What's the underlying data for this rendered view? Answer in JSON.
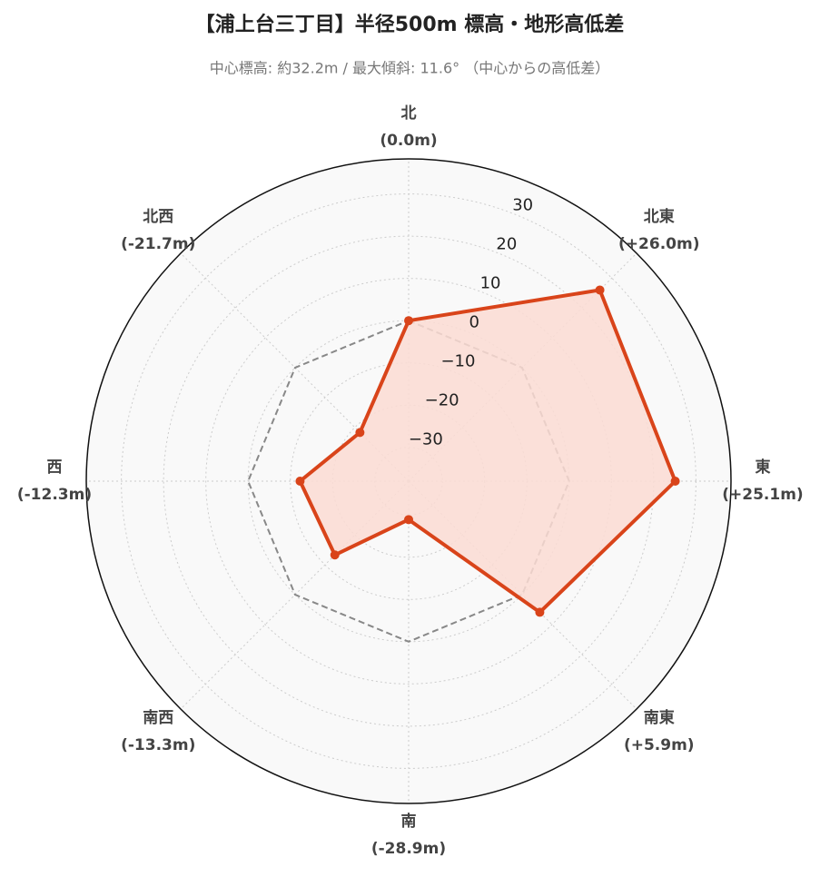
{
  "chart_data": {
    "type": "radar",
    "title": "【浦上台三丁目】半径500m 標高・地形高低差",
    "subtitle": "中心標高: 約32.2m / 最大傾斜: 11.6° （中心からの高低差）",
    "categories": [
      "北",
      "北東",
      "東",
      "南東",
      "南",
      "南西",
      "西",
      "北西"
    ],
    "values": [
      0.0,
      26.0,
      25.1,
      5.9,
      -28.9,
      -13.3,
      -12.3,
      -21.7
    ],
    "value_labels": [
      "(0.0m)",
      "(+26.0m)",
      "(+25.1m)",
      "(+5.9m)",
      "(-28.9m)",
      "(-13.3m)",
      "(-12.3m)",
      "(-21.7m)"
    ],
    "color": "#d9441a",
    "fill_color": "#fcdcd3",
    "reference_line": 0,
    "ylim": [
      -38,
      38.3
    ],
    "yticks": [
      {
        "value": -30,
        "label": "−30"
      },
      {
        "value": -20,
        "label": "−20"
      },
      {
        "value": -10,
        "label": "−10"
      },
      0,
      10,
      20,
      30
    ],
    "grid": true
  }
}
